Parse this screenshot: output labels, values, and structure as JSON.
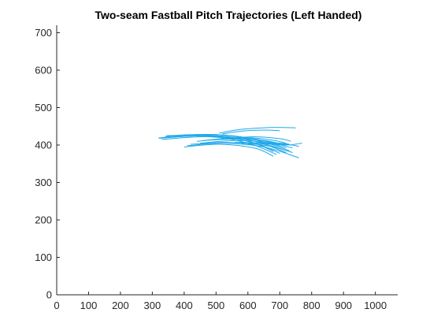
{
  "chart_data": {
    "type": "line",
    "title": "Two-seam Fastball Pitch Trajectories (Left Handed)",
    "xlabel": "",
    "ylabel": "",
    "xlim": [
      0,
      1070
    ],
    "ylim": [
      0,
      720
    ],
    "xticks": [
      0,
      100,
      200,
      300,
      400,
      500,
      600,
      700,
      800,
      900,
      1000
    ],
    "yticks": [
      0,
      100,
      200,
      300,
      400,
      500,
      600,
      700
    ],
    "grid": false,
    "legend": "none",
    "color": "#1ea9ea",
    "series": [
      {
        "x": [
          320,
          470,
          600,
          680
        ],
        "y": [
          418,
          425,
          410,
          383
        ]
      },
      {
        "x": [
          330,
          480,
          610,
          700
        ],
        "y": [
          420,
          424,
          408,
          378
        ]
      },
      {
        "x": [
          340,
          490,
          620,
          720
        ],
        "y": [
          423,
          426,
          410,
          380
        ]
      },
      {
        "x": [
          345,
          500,
          630,
          730
        ],
        "y": [
          425,
          428,
          412,
          385
        ]
      },
      {
        "x": [
          330,
          480,
          600,
          690
        ],
        "y": [
          415,
          422,
          405,
          375
        ]
      },
      {
        "x": [
          350,
          500,
          630,
          740
        ],
        "y": [
          420,
          428,
          415,
          392
        ]
      },
      {
        "x": [
          320,
          470,
          610,
          710
        ],
        "y": [
          419,
          425,
          412,
          388
        ]
      },
      {
        "x": [
          510,
          580,
          670,
          750
        ],
        "y": [
          432,
          442,
          447,
          446
        ]
      },
      {
        "x": [
          520,
          590,
          660,
          700
        ],
        "y": [
          430,
          438,
          440,
          438
        ]
      },
      {
        "x": [
          460,
          560,
          650,
          710
        ],
        "y": [
          412,
          416,
          412,
          402
        ]
      },
      {
        "x": [
          560,
          640,
          720,
          770
        ],
        "y": [
          408,
          405,
          400,
          405
        ]
      },
      {
        "x": [
          580,
          650,
          700,
          730
        ],
        "y": [
          404,
          406,
          405,
          402
        ]
      },
      {
        "x": [
          400,
          510,
          620,
          680
        ],
        "y": [
          395,
          402,
          392,
          370
        ]
      },
      {
        "x": [
          410,
          520,
          650,
          760
        ],
        "y": [
          398,
          405,
          395,
          366
        ]
      },
      {
        "x": [
          420,
          540,
          660,
          740
        ],
        "y": [
          402,
          407,
          398,
          380
        ]
      },
      {
        "x": [
          600,
          680,
          740,
          760
        ],
        "y": [
          402,
          403,
          400,
          396
        ]
      },
      {
        "x": [
          540,
          620,
          700,
          735
        ],
        "y": [
          418,
          422,
          417,
          410
        ]
      },
      {
        "x": [
          500,
          590,
          670,
          720
        ],
        "y": [
          415,
          420,
          414,
          405
        ]
      },
      {
        "x": [
          450,
          560,
          660,
          720
        ],
        "y": [
          405,
          412,
          406,
          392
        ]
      },
      {
        "x": [
          440,
          550,
          640,
          700
        ],
        "y": [
          410,
          418,
          412,
          398
        ]
      }
    ]
  }
}
